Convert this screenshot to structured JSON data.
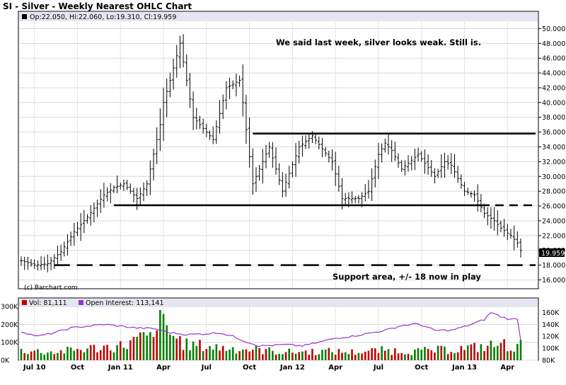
{
  "header": {
    "title": "SI - Silver - Weekly Nearest OHLC Chart",
    "ohlc_readout": "Op:22.050, Hi:22.060, Lo:19.310, Cl:19.959",
    "credit": "(c) Barchart.com",
    "last_value_label": "19.959"
  },
  "annotations": {
    "top_note": "We said last week, silver looks weak.  Still is.",
    "support_note": "Support area, +/- 18 now in play"
  },
  "colors": {
    "up_volume": "#c00000",
    "down_volume": "#008000",
    "open_interest": "#9933cc",
    "bars": "#000000",
    "legend_band": "#e6e6f2"
  },
  "chart_data": [
    {
      "type": "line",
      "title": "SI - Silver - Weekly Nearest OHLC Chart",
      "subtitle": "Op:22.050, Hi:22.060, Lo:19.310, Cl:19.959",
      "xlabel": "",
      "ylabel": "",
      "ylim": [
        14.8,
        51
      ],
      "y_ticks": [
        "16.000",
        "18.000",
        "20.000",
        "22.000",
        "24.000",
        "26.000",
        "28.000",
        "30.000",
        "32.000",
        "34.000",
        "36.000",
        "38.000",
        "40.000",
        "42.000",
        "44.000",
        "46.000",
        "48.000",
        "50.000"
      ],
      "x_ticks": [
        "Jul 10",
        "Oct",
        "Jan 11",
        "Apr",
        "Jul",
        "Oct",
        "Jan 12",
        "Apr",
        "Jul",
        "Oct",
        "Jan 13",
        "Apr"
      ],
      "n_weeks": 152,
      "grid": true,
      "close_knots_week": [
        0,
        4,
        8,
        12,
        16,
        20,
        25,
        28,
        31,
        35,
        38,
        40,
        42,
        43,
        45,
        48,
        52,
        56,
        58,
        62,
        66,
        67,
        70,
        75,
        79,
        84,
        88,
        94,
        97,
        102,
        105,
        108,
        110,
        112,
        115,
        120,
        125,
        128,
        130,
        134,
        137,
        140,
        143,
        145,
        148,
        150,
        151
      ],
      "close_knots_value": [
        18.6,
        18.0,
        18.2,
        19.8,
        22.5,
        24.5,
        27.5,
        28.5,
        29,
        27,
        29,
        33,
        37,
        40,
        43,
        48,
        38,
        36,
        35,
        42,
        43,
        40,
        29,
        34,
        28,
        34,
        35.5,
        32,
        27,
        27,
        28,
        33,
        34.5,
        33.5,
        31,
        33,
        30,
        32,
        31.5,
        28,
        27.5,
        25,
        24,
        23,
        22,
        21,
        19.96
      ],
      "annotation_lines": [
        {
          "label": "resistance",
          "y": 35.8,
          "from_week": 70,
          "to_week": 151,
          "style": "solid"
        },
        {
          "label": "support-mid",
          "y": 26.1,
          "from_week": 28,
          "to_week": 139,
          "style": "solid"
        },
        {
          "label": "support-mid-ext",
          "y": 26.1,
          "from_week": 139,
          "to_week": 151,
          "style": "dashed"
        },
        {
          "label": "support-low",
          "y": 18.0,
          "from_week": 10,
          "to_week": 151,
          "style": "dashed"
        }
      ]
    },
    {
      "type": "bar",
      "title": "",
      "legend": [
        {
          "name": "Vol: 81,111",
          "color": "#c00000"
        },
        {
          "name": "Open Interest: 113,141",
          "color": "#9933cc"
        }
      ],
      "ylim_volume": [
        0,
        300000
      ],
      "volume_ticks": [
        "0K",
        "100K",
        "200K",
        "300K"
      ],
      "ylim_open_interest": [
        80000,
        170000
      ],
      "open_interest_ticks": [
        "80K",
        "100K",
        "120K",
        "140K",
        "160K"
      ],
      "volume_knots_week": [
        0,
        10,
        20,
        30,
        38,
        40,
        41,
        43,
        45,
        50,
        55,
        60,
        70,
        80,
        90,
        100,
        110,
        120,
        130,
        140,
        145,
        150,
        151
      ],
      "volume_knots_value": [
        55000,
        45000,
        65000,
        80000,
        130000,
        110000,
        260000,
        200000,
        150000,
        85000,
        80000,
        70000,
        60000,
        45000,
        50000,
        45000,
        55000,
        50000,
        60000,
        75000,
        90000,
        70000,
        81111
      ],
      "open_interest_knots_week": [
        0,
        5,
        10,
        15,
        20,
        25,
        30,
        35,
        40,
        45,
        50,
        55,
        60,
        64,
        68,
        72,
        76,
        80,
        85,
        90,
        95,
        100,
        105,
        110,
        115,
        120,
        125,
        130,
        135,
        140,
        142,
        145,
        148,
        150,
        151
      ],
      "open_interest_knots_value": [
        128000,
        120000,
        126000,
        134000,
        137000,
        140000,
        137000,
        134000,
        133000,
        126000,
        123000,
        124000,
        126000,
        120000,
        111000,
        104000,
        105000,
        106000,
        104000,
        110000,
        117000,
        120000,
        125000,
        130000,
        138000,
        141000,
        130000,
        130000,
        138000,
        148000,
        160000,
        153000,
        148000,
        150000,
        113141
      ]
    }
  ]
}
